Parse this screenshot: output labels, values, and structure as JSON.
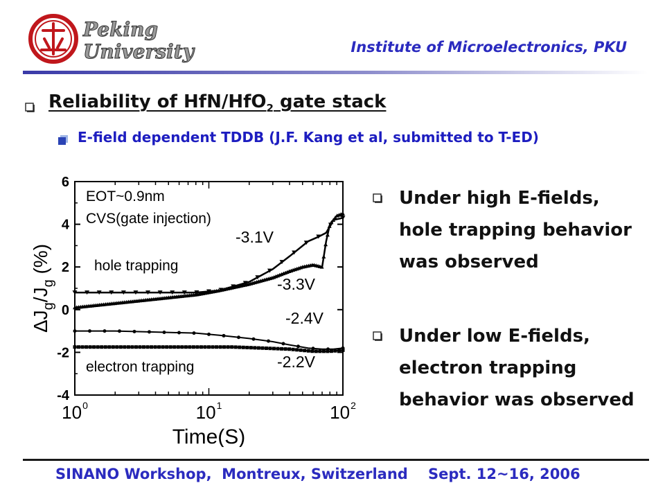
{
  "header": {
    "logo_text": [
      "Peking",
      "University"
    ],
    "institute": "Institute of Microelectronics, PKU"
  },
  "title": {
    "main": "Reliability of HfN/HfO",
    "sub": "2",
    "main_end": " gate stack",
    "subheading": "E-field dependent TDDB (J.F. Kang et al, submitted to T-ED)"
  },
  "bullets": [
    {
      "text": "Under high E-fields, hole trapping behavior was observed"
    },
    {
      "text": "Under low E-fields, electron trapping behavior was observed"
    }
  ],
  "footer": {
    "text": "SINANO Workshop,  Montreux, Switzerland    Sept. 12~16, 2006"
  },
  "colors": {
    "accent": "#2b2bbf",
    "rule": "#3a3aa8",
    "logo_red": "#c0171c"
  },
  "chart_data": {
    "type": "line",
    "xscale": "log",
    "xlim": [
      1,
      100
    ],
    "ylim": [
      -4,
      6
    ],
    "xlabel": "Time(S)",
    "ylabel": "ΔJ_g/J_g (%)",
    "x_ticks": [
      "10^0",
      "10^1",
      "10^2"
    ],
    "y_ticks": [
      "-4",
      "-2",
      "0",
      "2",
      "4",
      "6"
    ],
    "annotations": [
      "EOT~0.9nm",
      "CVS(gate injection)",
      "hole trapping",
      "electron trapping"
    ],
    "series": [
      {
        "name": "-3.1V",
        "x": [
          1,
          2,
          4,
          8,
          12,
          20,
          30,
          40,
          55,
          65,
          75,
          85,
          100
        ],
        "y": [
          0.8,
          0.8,
          0.8,
          0.8,
          0.9,
          1.3,
          1.9,
          2.5,
          3.2,
          3.4,
          3.6,
          4.2,
          4.3
        ]
      },
      {
        "name": "-3.3V",
        "x": [
          1,
          2,
          4,
          8,
          12,
          20,
          30,
          40,
          50,
          60,
          70,
          75,
          80,
          90,
          100
        ],
        "y": [
          0.1,
          0.3,
          0.5,
          0.7,
          0.9,
          1.2,
          1.5,
          1.8,
          2.0,
          2.1,
          2.0,
          3.2,
          4.0,
          4.4,
          4.5
        ]
      },
      {
        "name": "-2.4V",
        "x": [
          1,
          2,
          4,
          8,
          12,
          20,
          30,
          40,
          55,
          70,
          85,
          100
        ],
        "y": [
          -1.0,
          -1.0,
          -1.05,
          -1.1,
          -1.2,
          -1.35,
          -1.5,
          -1.65,
          -1.8,
          -1.85,
          -1.85,
          -1.8
        ]
      },
      {
        "name": "-2.2V",
        "x": [
          1,
          2,
          4,
          8,
          15,
          25,
          40,
          60,
          80,
          100
        ],
        "y": [
          -1.75,
          -1.75,
          -1.75,
          -1.75,
          -1.75,
          -1.8,
          -1.85,
          -1.95,
          -1.95,
          -1.9
        ]
      }
    ]
  }
}
